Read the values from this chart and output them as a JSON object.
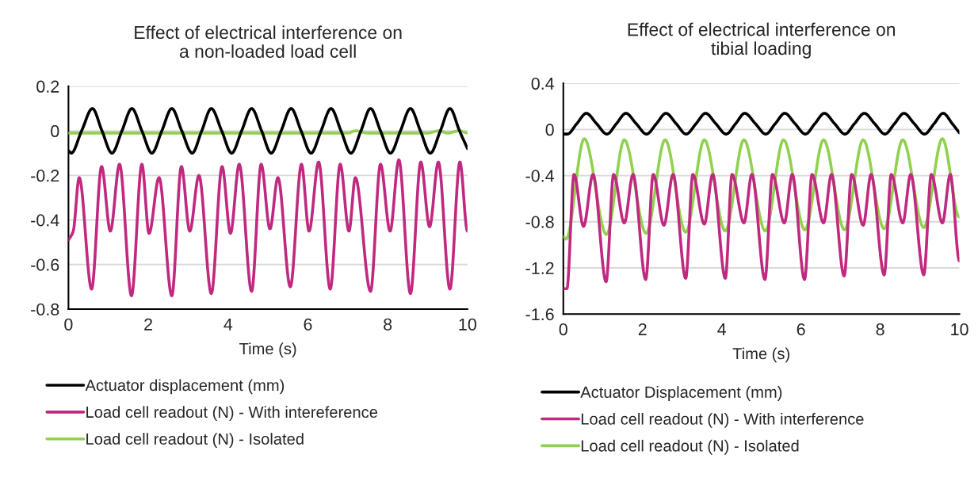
{
  "chart_data": [
    {
      "type": "line",
      "title": "Effect of electrical interference on\na non-loaded load cell",
      "xlabel": "Time (s)",
      "xlim": [
        0,
        10
      ],
      "xticks": [
        0,
        2,
        4,
        6,
        8,
        10
      ],
      "ylim": [
        -0.8,
        0.2
      ],
      "yticks": [
        {
          "value": -0.8,
          "label": "-0.8"
        },
        {
          "value": -0.6,
          "label": "-0.6"
        },
        {
          "value": -0.4,
          "label": "-0.4"
        },
        {
          "value": -0.2,
          "label": "-0.2"
        },
        0,
        0.2
      ],
      "grid": "y",
      "legend": "bottom",
      "line_style": "solid",
      "marker": "none",
      "series": [
        {
          "name": "Actuator displacement (mm)",
          "color": "#000000",
          "x": [
            0,
            0.07,
            0.33,
            0.6,
            0.84,
            1.09,
            1.34,
            1.59,
            1.84,
            2.09,
            2.34,
            2.59,
            2.84,
            3.1,
            3.34,
            3.58,
            3.84,
            4.09,
            4.34,
            4.59,
            4.84,
            5.08,
            5.33,
            5.58,
            5.83,
            6.08,
            6.33,
            6.58,
            6.83,
            7.08,
            7.33,
            7.57,
            7.82,
            8.07,
            8.32,
            8.57,
            8.82,
            9.07,
            9.32,
            9.56,
            9.8,
            10
          ],
          "values": [
            -0.09,
            -0.1,
            0,
            0.1,
            0,
            -0.1,
            0,
            0.1,
            0,
            -0.1,
            0,
            0.1,
            0,
            -0.1,
            0,
            0.1,
            0,
            -0.1,
            0,
            0.1,
            0,
            -0.1,
            0,
            0.1,
            0,
            -0.1,
            0,
            0.1,
            0,
            -0.1,
            0,
            0.1,
            0,
            -0.1,
            0,
            0.1,
            0,
            -0.1,
            0,
            0.1,
            0,
            -0.08
          ]
        },
        {
          "name": "Load cell readout (N) - With intereference",
          "color": "#c0297f",
          "x": [
            0,
            0.12,
            0.27,
            0.58,
            0.83,
            1.05,
            1.28,
            1.58,
            1.84,
            2.02,
            2.27,
            2.59,
            2.83,
            3.04,
            3.27,
            3.58,
            3.85,
            4.06,
            4.28,
            4.59,
            4.83,
            5.05,
            5.25,
            5.56,
            5.84,
            6.03,
            6.27,
            6.56,
            6.81,
            7.03,
            7.19,
            7.57,
            7.82,
            8.06,
            8.28,
            8.57,
            8.83,
            9.05,
            9.27,
            9.56,
            9.81,
            10
          ],
          "values": [
            -0.49,
            -0.45,
            -0.21,
            -0.71,
            -0.16,
            -0.45,
            -0.15,
            -0.74,
            -0.15,
            -0.46,
            -0.21,
            -0.74,
            -0.16,
            -0.45,
            -0.2,
            -0.73,
            -0.16,
            -0.46,
            -0.15,
            -0.72,
            -0.15,
            -0.44,
            -0.21,
            -0.7,
            -0.15,
            -0.45,
            -0.14,
            -0.71,
            -0.15,
            -0.45,
            -0.21,
            -0.72,
            -0.15,
            -0.45,
            -0.13,
            -0.73,
            -0.14,
            -0.43,
            -0.14,
            -0.71,
            -0.14,
            -0.45
          ]
        },
        {
          "name": "Load cell readout (N) - Isolated",
          "color": "#92d050",
          "x": [
            0,
            0.5,
            1,
            1.5,
            2,
            2.5,
            3,
            3.5,
            4,
            4.5,
            5,
            5.5,
            6,
            6.5,
            7,
            7.2,
            7.5,
            8,
            8.5,
            9,
            9.28,
            9.5,
            9.8,
            10
          ],
          "values": [
            -0.01,
            -0.01,
            -0.01,
            -0.01,
            -0.01,
            -0.01,
            -0.01,
            -0.01,
            -0.01,
            -0.01,
            -0.01,
            -0.01,
            -0.01,
            -0.01,
            -0.01,
            0,
            -0.01,
            -0.01,
            -0.01,
            -0.01,
            0,
            -0.01,
            0,
            -0.01
          ]
        }
      ]
    },
    {
      "type": "line",
      "title": "Effect of electrical interference on\ntibial loading",
      "xlabel": "Time (s)",
      "xlim": [
        0,
        10
      ],
      "xticks": [
        0,
        2,
        4,
        6,
        8,
        10
      ],
      "ylim": [
        -1.6,
        0.4
      ],
      "yticks": [
        {
          "value": -1.6,
          "label": "-1.6"
        },
        {
          "value": -1.2,
          "label": "-1.2"
        },
        {
          "value": -0.8,
          "label": "-0.8"
        },
        {
          "value": -0.4,
          "label": "-0.4"
        },
        0,
        0.4
      ],
      "grid": "y",
      "legend": "bottom",
      "line_style": "solid",
      "marker": "none",
      "series": [
        {
          "name": "Actuator Displacement (mm)",
          "color": "#000000",
          "x": [
            0,
            0.1,
            0.34,
            0.58,
            0.84,
            1.1,
            1.34,
            1.58,
            1.84,
            2.1,
            2.35,
            2.59,
            2.85,
            3.1,
            3.35,
            3.59,
            3.85,
            4.11,
            4.35,
            4.58,
            4.85,
            5.11,
            5.35,
            5.59,
            5.85,
            6.11,
            6.35,
            6.59,
            6.85,
            7.11,
            7.35,
            7.6,
            7.86,
            8.12,
            8.36,
            8.6,
            8.86,
            9.12,
            9.36,
            9.59,
            9.82,
            10
          ],
          "values": [
            -0.04,
            -0.04,
            0.05,
            0.14,
            0.05,
            -0.04,
            0.05,
            0.14,
            0.05,
            -0.04,
            0.05,
            0.14,
            0.05,
            -0.04,
            0.05,
            0.14,
            0.05,
            -0.04,
            0.05,
            0.14,
            0.05,
            -0.04,
            0.05,
            0.14,
            0.05,
            -0.04,
            0.05,
            0.14,
            0.05,
            -0.04,
            0.05,
            0.14,
            0.05,
            -0.04,
            0.05,
            0.14,
            0.05,
            -0.04,
            0.05,
            0.14,
            0.05,
            -0.03
          ]
        },
        {
          "name": "Load cell readout (N) - With interference",
          "color": "#c0297f",
          "x": [
            0,
            0.09,
            0.27,
            0.51,
            0.75,
            1.08,
            1.27,
            1.54,
            1.76,
            2.08,
            2.27,
            2.54,
            2.77,
            3.09,
            3.27,
            3.56,
            3.77,
            4.09,
            4.26,
            4.56,
            4.76,
            5.09,
            5.28,
            5.58,
            5.78,
            6.09,
            6.28,
            6.57,
            6.77,
            7.09,
            7.28,
            7.57,
            7.77,
            8.1,
            8.28,
            8.57,
            8.77,
            9.1,
            9.29,
            9.57,
            9.77,
            10
          ],
          "values": [
            -1.38,
            -1.38,
            -0.39,
            -0.84,
            -0.39,
            -1.32,
            -0.39,
            -0.81,
            -0.39,
            -1.3,
            -0.39,
            -0.83,
            -0.39,
            -1.29,
            -0.39,
            -0.82,
            -0.39,
            -1.29,
            -0.39,
            -0.81,
            -0.39,
            -1.3,
            -0.39,
            -0.81,
            -0.39,
            -1.3,
            -0.39,
            -0.81,
            -0.39,
            -1.27,
            -0.39,
            -0.83,
            -0.39,
            -1.26,
            -0.39,
            -0.81,
            -0.39,
            -1.26,
            -0.39,
            -0.81,
            -0.39,
            -1.14
          ]
        },
        {
          "name": "Load cell readout (N) - Isolated",
          "color": "#92d050",
          "x": [
            0,
            0.07,
            0.53,
            1.09,
            1.54,
            2.09,
            2.57,
            3.09,
            3.56,
            4.09,
            4.56,
            5.1,
            5.56,
            6.1,
            6.57,
            7.1,
            7.57,
            8.1,
            8.57,
            9.1,
            9.57,
            10
          ],
          "values": [
            -0.93,
            -0.95,
            -0.08,
            -0.91,
            -0.09,
            -0.9,
            -0.09,
            -0.89,
            -0.09,
            -0.88,
            -0.09,
            -0.88,
            -0.09,
            -0.87,
            -0.09,
            -0.87,
            -0.09,
            -0.86,
            -0.09,
            -0.85,
            -0.08,
            -0.76
          ]
        }
      ]
    }
  ]
}
